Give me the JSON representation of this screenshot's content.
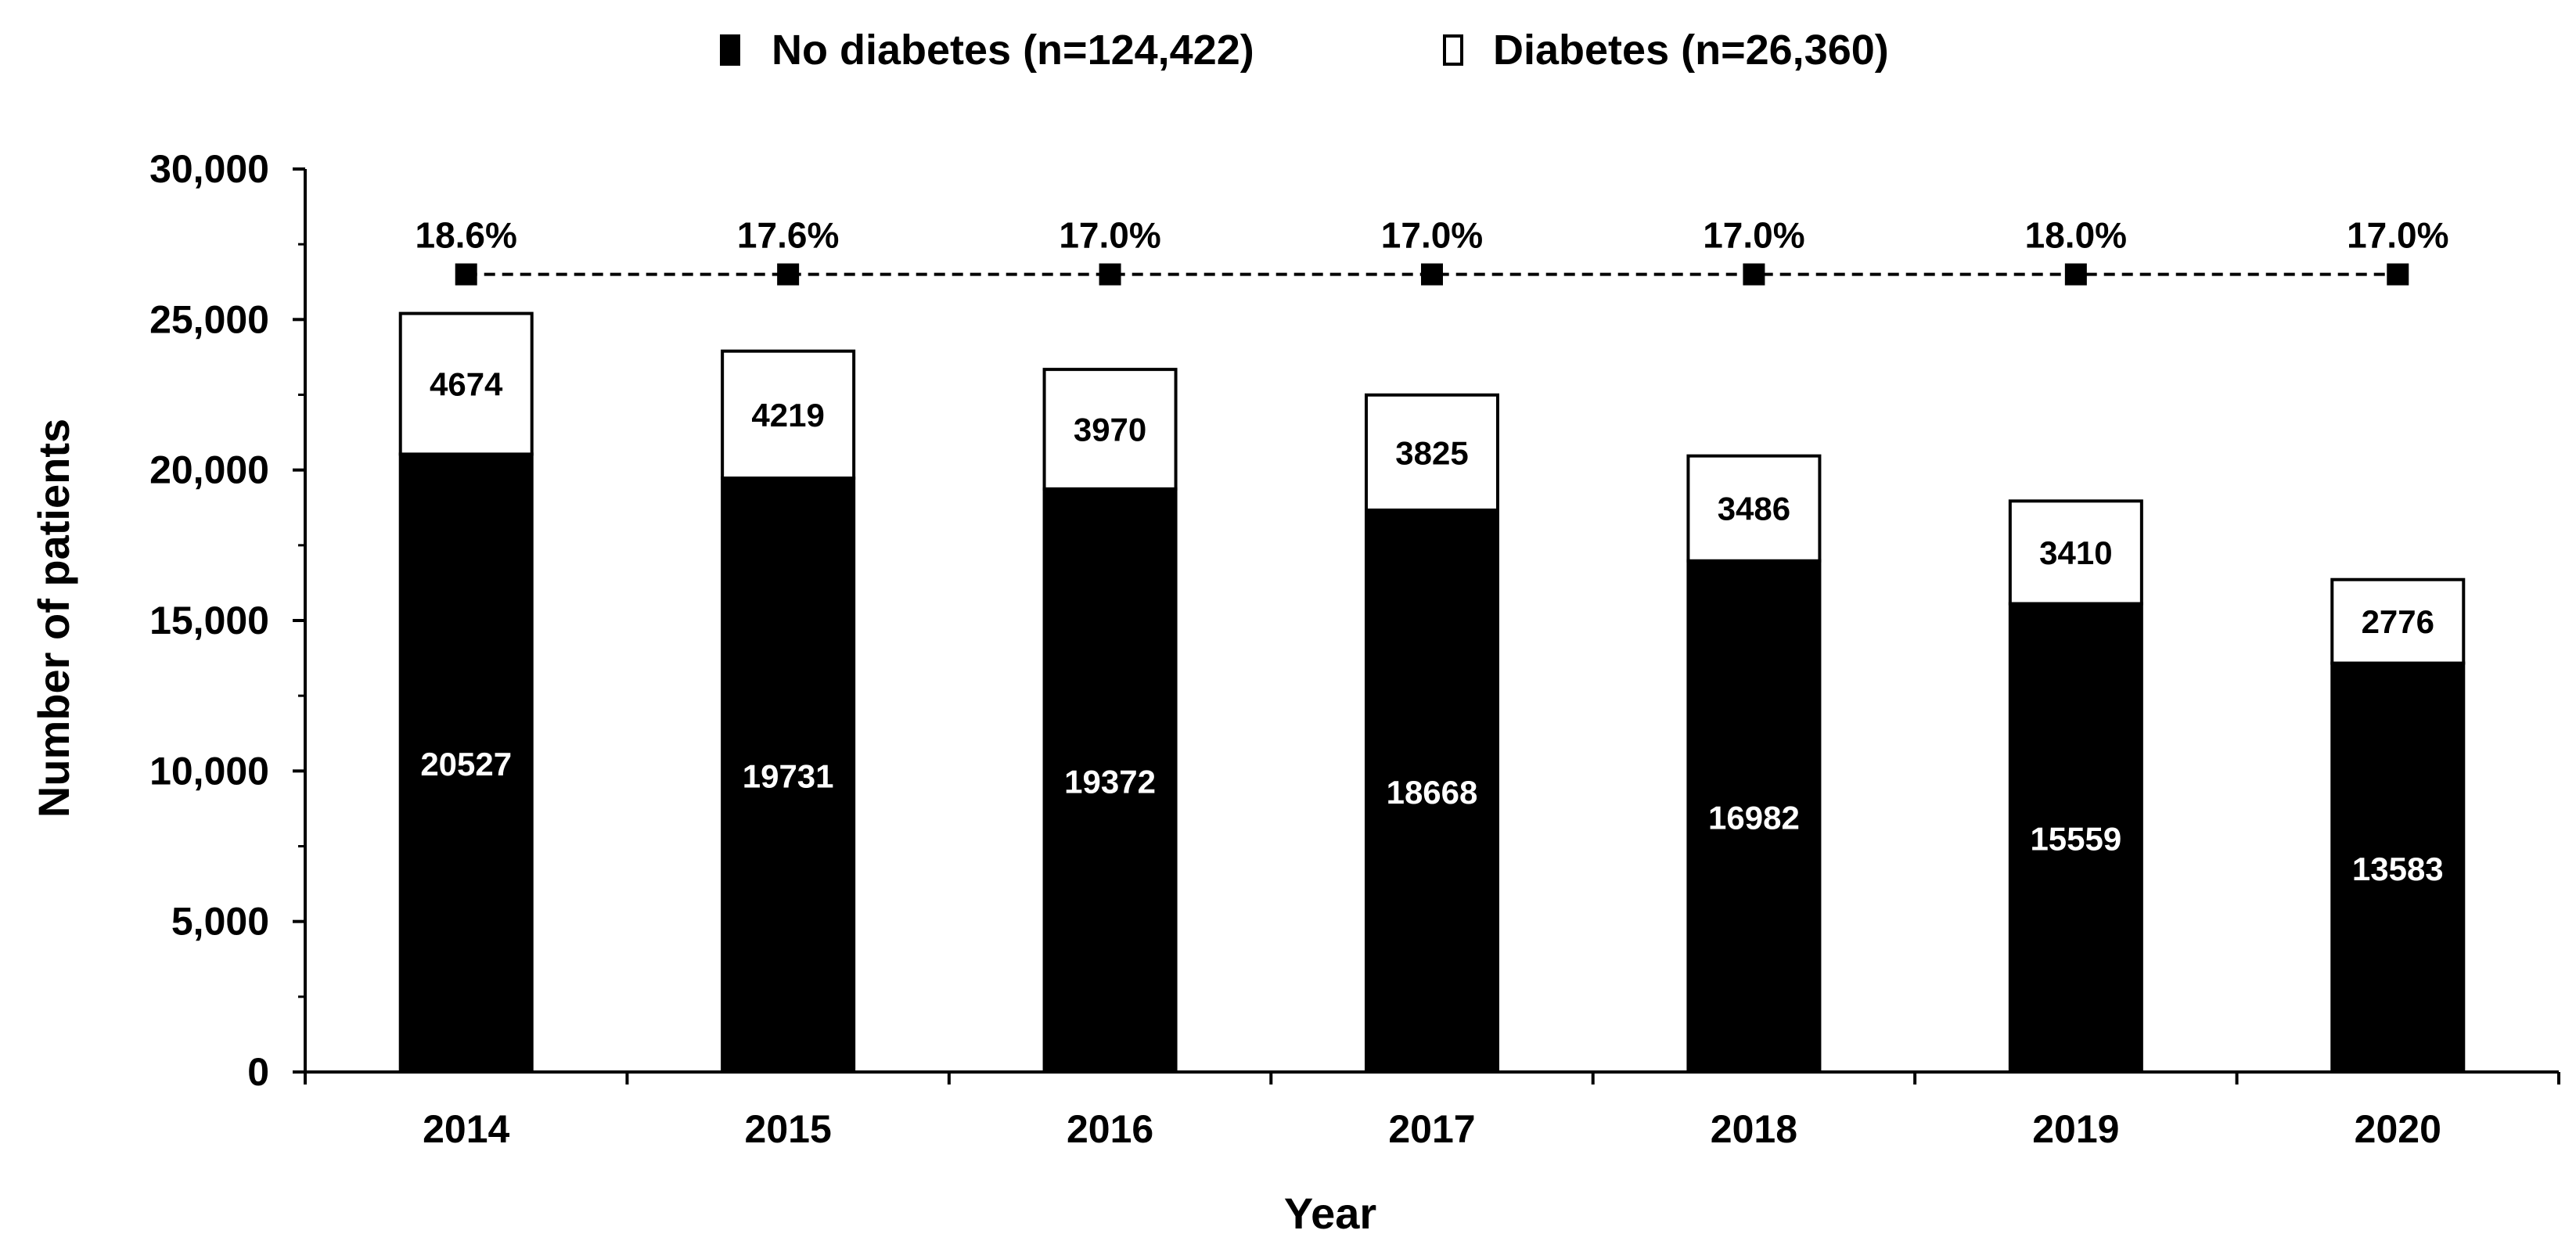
{
  "chart_data": {
    "type": "bar",
    "stacked": true,
    "categories": [
      "2014",
      "2015",
      "2016",
      "2017",
      "2018",
      "2019",
      "2020"
    ],
    "series": [
      {
        "name": "No diabetes (n=124,422)",
        "color": "#000000",
        "values": [
          20527,
          19731,
          19372,
          18668,
          16982,
          15559,
          13583
        ]
      },
      {
        "name": "Diabetes (n=26,360)",
        "color": "#ffffff",
        "values": [
          4674,
          4219,
          3970,
          3825,
          3486,
          3410,
          2776
        ]
      }
    ],
    "percent_line": {
      "labels": [
        "18.6%",
        "17.6%",
        "17.0%",
        "17.0%",
        "17.0%",
        "18.0%",
        "17.0%"
      ],
      "plotted_value": 26500,
      "style": "dashed",
      "marker": "square"
    },
    "yticks": [
      "0",
      "5,000",
      "10,000",
      "15,000",
      "20,000",
      "25,000",
      "30,000"
    ],
    "xlabel": "Year",
    "ylabel": "Number of patients",
    "ylim": [
      0,
      30000
    ],
    "legend_position": "top-center",
    "grid": false
  }
}
